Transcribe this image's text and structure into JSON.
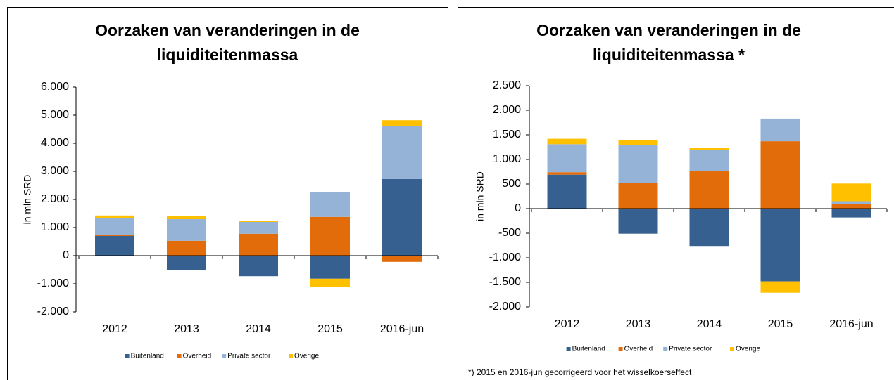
{
  "chart_data": [
    {
      "type": "bar",
      "stacked": true,
      "title": [
        "Oorzaken van veranderingen in de",
        "liquiditeitenmassa"
      ],
      "y_label": "in mln SRD",
      "categories": [
        "2012",
        "2013",
        "2014",
        "2015",
        "2016-jun"
      ],
      "series": [
        {
          "name": "Buitenland",
          "color": "#35608f",
          "values": [
            700,
            -500,
            -730,
            -820,
            2730
          ]
        },
        {
          "name": "Overheid",
          "color": "#e36c0a",
          "values": [
            50,
            530,
            780,
            1380,
            -220
          ]
        },
        {
          "name": "Private sector",
          "color": "#95b3d7",
          "values": [
            600,
            770,
            420,
            870,
            1890
          ]
        },
        {
          "name": "Overige",
          "color": "#ffc000",
          "values": [
            80,
            120,
            50,
            -280,
            200
          ]
        }
      ],
      "ylim": [
        -2000,
        6000
      ],
      "yticks": [
        {
          "value": -2000,
          "label": "-2.000"
        },
        {
          "value": -1000,
          "label": "-1.000"
        },
        0,
        {
          "value": 1000,
          "label": "1.000"
        },
        {
          "value": 2000,
          "label": "2.000"
        },
        {
          "value": 3000,
          "label": "3.000"
        },
        {
          "value": 4000,
          "label": "4.000"
        },
        {
          "value": 5000,
          "label": "5.000"
        },
        {
          "value": 6000,
          "label": "6.000"
        }
      ],
      "legend": "bottom"
    },
    {
      "type": "bar",
      "stacked": true,
      "title": [
        "Oorzaken van veranderingen in de",
        "liquiditeitenmassa *"
      ],
      "y_label": "in mln SRD",
      "categories": [
        "2012",
        "2013",
        "2014",
        "2015",
        "2016-jun"
      ],
      "series": [
        {
          "name": "Buitenland",
          "color": "#35608f",
          "values": [
            690,
            -510,
            -760,
            -1480,
            -180
          ]
        },
        {
          "name": "Overheid",
          "color": "#e36c0a",
          "values": [
            50,
            520,
            760,
            1370,
            90
          ]
        },
        {
          "name": "Private sector",
          "color": "#95b3d7",
          "values": [
            570,
            780,
            430,
            460,
            60
          ]
        },
        {
          "name": "Overige",
          "color": "#ffc000",
          "values": [
            110,
            100,
            50,
            -230,
            360
          ]
        }
      ],
      "ylim": [
        -2000,
        2500
      ],
      "yticks": [
        {
          "value": -2000,
          "label": "-2.000"
        },
        {
          "value": -1500,
          "label": "-1.500"
        },
        {
          "value": -1000,
          "label": "-1.000"
        },
        -500,
        0,
        500,
        {
          "value": 1000,
          "label": "1.000"
        },
        {
          "value": 1500,
          "label": "1.500"
        },
        {
          "value": 2000,
          "label": "2.000"
        },
        {
          "value": 2500,
          "label": "2.500"
        }
      ],
      "legend": "bottom",
      "footnote": "*) 2015 en 2016-jun gecorrigeerd voor het wisselkoerseffect"
    }
  ]
}
